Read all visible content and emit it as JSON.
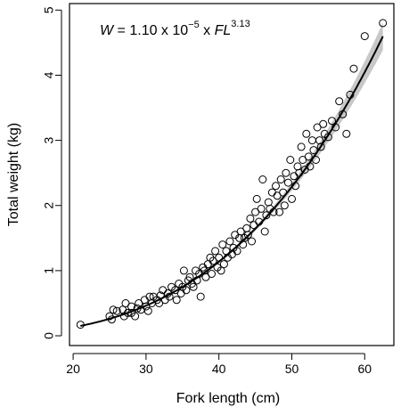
{
  "chart_data": {
    "type": "scatter",
    "xlabel": "Fork length (cm)",
    "ylabel": "Total weight (kg)",
    "xlim": [
      19.5,
      64
    ],
    "ylim": [
      -0.15,
      5.1
    ],
    "x_ticks": [
      20,
      30,
      40,
      50,
      60
    ],
    "y_ticks": [
      0,
      1,
      2,
      3,
      4,
      5
    ],
    "grid": false,
    "equation": {
      "lhs": "W",
      "eq": " = 1.10 x 10",
      "exp1": "−5",
      "mid": " x ",
      "var": "FL",
      "exp2": "3.13"
    },
    "fit": {
      "a": 1.1e-05,
      "b": 3.13,
      "x_range": [
        21,
        62.5
      ],
      "confidence_band": true
    },
    "points": [
      [
        21,
        0.17
      ],
      [
        25,
        0.3
      ],
      [
        25.3,
        0.25
      ],
      [
        25.5,
        0.4
      ],
      [
        26,
        0.38
      ],
      [
        26.8,
        0.4
      ],
      [
        27,
        0.3
      ],
      [
        27.2,
        0.5
      ],
      [
        27.5,
        0.35
      ],
      [
        28,
        0.45
      ],
      [
        28,
        0.35
      ],
      [
        28.5,
        0.3
      ],
      [
        28.8,
        0.42
      ],
      [
        29,
        0.5
      ],
      [
        29.3,
        0.4
      ],
      [
        29.8,
        0.55
      ],
      [
        30,
        0.45
      ],
      [
        30.3,
        0.38
      ],
      [
        30.5,
        0.6
      ],
      [
        30.8,
        0.5
      ],
      [
        31,
        0.6
      ],
      [
        31.5,
        0.55
      ],
      [
        31.8,
        0.5
      ],
      [
        32,
        0.62
      ],
      [
        32.3,
        0.7
      ],
      [
        32.6,
        0.55
      ],
      [
        33,
        0.65
      ],
      [
        33.2,
        0.6
      ],
      [
        33.5,
        0.75
      ],
      [
        34,
        0.7
      ],
      [
        34.2,
        0.55
      ],
      [
        34.5,
        0.8
      ],
      [
        34.8,
        0.65
      ],
      [
        35,
        0.75
      ],
      [
        35.2,
        1.0
      ],
      [
        35.5,
        0.7
      ],
      [
        35.8,
        0.85
      ],
      [
        36,
        0.9
      ],
      [
        36.3,
        0.8
      ],
      [
        36.5,
        0.75
      ],
      [
        36.8,
        1.0
      ],
      [
        37,
        0.85
      ],
      [
        37.3,
        0.95
      ],
      [
        37.5,
        0.6
      ],
      [
        37.8,
        1.05
      ],
      [
        38,
        1.0
      ],
      [
        38.2,
        0.9
      ],
      [
        38.5,
        1.1
      ],
      [
        38.8,
        1.2
      ],
      [
        39,
        0.95
      ],
      [
        39.2,
        1.15
      ],
      [
        39.5,
        1.3
      ],
      [
        39.8,
        1.05
      ],
      [
        40,
        1.2
      ],
      [
        40.3,
        1.0
      ],
      [
        40.5,
        1.4
      ],
      [
        40.7,
        1.1
      ],
      [
        41,
        1.3
      ],
      [
        41.2,
        1.2
      ],
      [
        41.5,
        1.45
      ],
      [
        41.8,
        1.25
      ],
      [
        42,
        1.35
      ],
      [
        42.2,
        1.55
      ],
      [
        42.5,
        1.3
      ],
      [
        42.8,
        1.5
      ],
      [
        43,
        1.6
      ],
      [
        43.3,
        1.4
      ],
      [
        43.5,
        1.5
      ],
      [
        43.8,
        1.65
      ],
      [
        44,
        1.55
      ],
      [
        44.3,
        1.8
      ],
      [
        44.5,
        1.45
      ],
      [
        44.8,
        1.7
      ],
      [
        45,
        1.9
      ],
      [
        45.2,
        2.1
      ],
      [
        45.5,
        1.75
      ],
      [
        45.8,
        1.95
      ],
      [
        46,
        2.4
      ],
      [
        46.3,
        1.6
      ],
      [
        46.5,
        1.85
      ],
      [
        46.8,
        2.05
      ],
      [
        47,
        1.95
      ],
      [
        47.3,
        2.2
      ],
      [
        47.5,
        1.9
      ],
      [
        47.8,
        2.3
      ],
      [
        48,
        2.15
      ],
      [
        48.3,
        1.9
      ],
      [
        48.5,
        2.4
      ],
      [
        48.8,
        2.2
      ],
      [
        49,
        2.0
      ],
      [
        49.2,
        2.5
      ],
      [
        49.5,
        2.35
      ],
      [
        49.8,
        2.7
      ],
      [
        50,
        2.1
      ],
      [
        50.3,
        2.45
      ],
      [
        50.5,
        2.3
      ],
      [
        50.8,
        2.6
      ],
      [
        51,
        2.5
      ],
      [
        51.3,
        2.9
      ],
      [
        51.5,
        2.7
      ],
      [
        51.8,
        2.55
      ],
      [
        52,
        3.1
      ],
      [
        52.3,
        2.75
      ],
      [
        52.5,
        2.6
      ],
      [
        52.8,
        3.0
      ],
      [
        53,
        2.85
      ],
      [
        53.3,
        2.7
      ],
      [
        53.5,
        3.2
      ],
      [
        53.8,
        3.0
      ],
      [
        54,
        2.9
      ],
      [
        54.3,
        3.25
      ],
      [
        54.5,
        3.1
      ],
      [
        55,
        3.05
      ],
      [
        55.5,
        3.3
      ],
      [
        56,
        3.2
      ],
      [
        56.5,
        3.6
      ],
      [
        57,
        3.4
      ],
      [
        57.5,
        3.1
      ],
      [
        58,
        3.7
      ],
      [
        58.5,
        4.1
      ],
      [
        60,
        4.6
      ],
      [
        62.5,
        4.8
      ]
    ]
  }
}
